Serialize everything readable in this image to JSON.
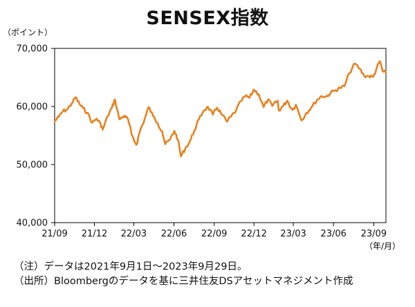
{
  "title": "SENSEX指数",
  "notes": [
    "（注）データは2021年9月1日～2023年9月29日。",
    "（出所）Bloombergのデータを基に三井住友DSアセットマネジメント作成"
  ],
  "colors": {
    "series": "#E8811F",
    "axis": "#000000",
    "text": "#111111"
  },
  "chart_data": {
    "type": "line",
    "title": "SENSEX指数",
    "ylabel": "（ポイント）",
    "xlabel": "（年/月）",
    "ylim": [
      40000,
      70000
    ],
    "yticks": [
      40000,
      50000,
      60000,
      70000
    ],
    "ytick_labels": [
      "40,000",
      "50,000",
      "60,000",
      "70,000"
    ],
    "xlim": [
      "2021-09-01",
      "2023-09-29"
    ],
    "xtick_labels": [
      "21/09",
      "21/12",
      "22/03",
      "22/06",
      "22/09",
      "22/12",
      "23/03",
      "23/06",
      "23/09"
    ],
    "xtick_dates": [
      "2021-09-01",
      "2021-12-01",
      "2022-03-01",
      "2022-06-01",
      "2022-09-01",
      "2022-12-01",
      "2023-03-01",
      "2023-06-01",
      "2023-09-01"
    ],
    "grid": false,
    "legend": "none",
    "series": [
      {
        "x": [
          "2021-09-01",
          "2021-09-10",
          "2021-09-20",
          "2021-09-30",
          "2021-10-10",
          "2021-10-19",
          "2021-10-28",
          "2021-11-05",
          "2021-11-15",
          "2021-11-26",
          "2021-12-06",
          "2021-12-15",
          "2021-12-20",
          "2021-12-31",
          "2022-01-10",
          "2022-01-17",
          "2022-01-27",
          "2022-02-07",
          "2022-02-16",
          "2022-02-24",
          "2022-03-07",
          "2022-03-16",
          "2022-03-25",
          "2022-04-04",
          "2022-04-14",
          "2022-04-25",
          "2022-05-05",
          "2022-05-12",
          "2022-05-23",
          "2022-06-02",
          "2022-06-10",
          "2022-06-17",
          "2022-06-27",
          "2022-07-07",
          "2022-07-18",
          "2022-07-28",
          "2022-08-08",
          "2022-08-18",
          "2022-08-29",
          "2022-09-08",
          "2022-09-16",
          "2022-09-30",
          "2022-10-10",
          "2022-10-21",
          "2022-11-01",
          "2022-11-11",
          "2022-11-21",
          "2022-12-01",
          "2022-12-12",
          "2022-12-23",
          "2023-01-02",
          "2023-01-12",
          "2023-01-24",
          "2023-01-27",
          "2023-02-07",
          "2023-02-15",
          "2023-02-27",
          "2023-03-07",
          "2023-03-20",
          "2023-03-31",
          "2023-04-11",
          "2023-04-24",
          "2023-05-05",
          "2023-05-16",
          "2023-05-26",
          "2023-06-06",
          "2023-06-16",
          "2023-06-26",
          "2023-07-07",
          "2023-07-20",
          "2023-07-31",
          "2023-08-10",
          "2023-08-21",
          "2023-08-31",
          "2023-09-08",
          "2023-09-15",
          "2023-09-22",
          "2023-09-29"
        ],
        "values": [
          57400,
          58200,
          59200,
          59500,
          60500,
          61600,
          60400,
          59700,
          58900,
          57200,
          57900,
          57000,
          56000,
          58300,
          59800,
          61200,
          57800,
          58400,
          57800,
          55200,
          53400,
          56000,
          57600,
          59900,
          58400,
          57100,
          55700,
          53500,
          54300,
          55800,
          54300,
          51400,
          52800,
          53900,
          55900,
          57800,
          59300,
          59900,
          58600,
          59800,
          58900,
          57400,
          58300,
          59300,
          60900,
          61800,
          61500,
          62900,
          62100,
          59900,
          61200,
          60100,
          61000,
          59300,
          60200,
          61000,
          59400,
          60300,
          57600,
          58900,
          59800,
          61100,
          61800,
          61700,
          62400,
          62800,
          63200,
          63500,
          65700,
          67400,
          66500,
          65300,
          65200,
          65100,
          66600,
          67800,
          66000,
          65800
        ]
      }
    ]
  }
}
